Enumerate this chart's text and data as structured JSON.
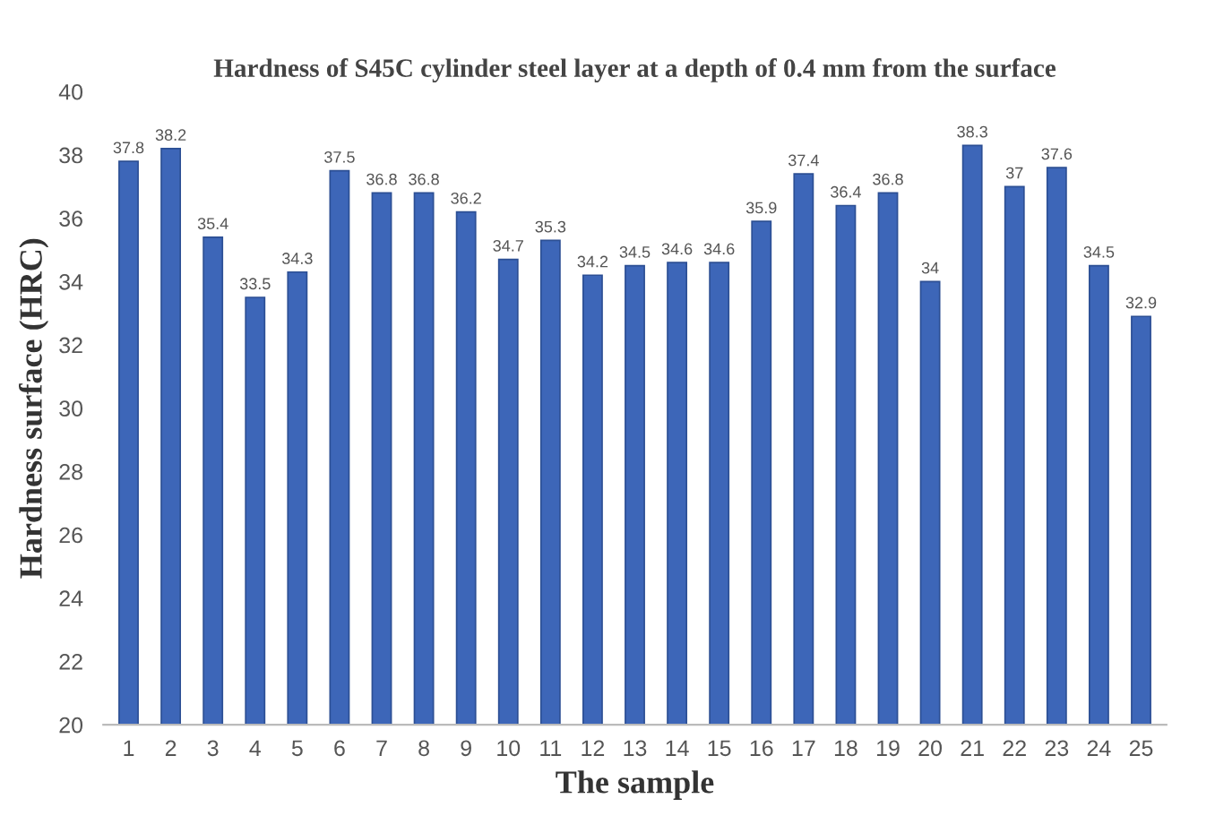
{
  "chart_data": {
    "type": "bar",
    "title": "Hardness of S45C cylinder steel layer at a depth of 0.4 mm from the surface",
    "xlabel": "The sample",
    "ylabel": "Hardness surface (HRC)",
    "categories": [
      "1",
      "2",
      "3",
      "4",
      "5",
      "6",
      "7",
      "8",
      "9",
      "10",
      "11",
      "12",
      "13",
      "14",
      "15",
      "16",
      "17",
      "18",
      "19",
      "20",
      "21",
      "22",
      "23",
      "24",
      "25"
    ],
    "values": [
      37.8,
      38.2,
      35.4,
      33.5,
      34.3,
      37.5,
      36.8,
      36.8,
      36.2,
      34.7,
      35.3,
      34.2,
      34.5,
      34.6,
      34.6,
      35.9,
      37.4,
      36.4,
      36.8,
      34,
      38.3,
      37,
      37.6,
      34.5,
      32.9
    ],
    "color": "#3d66b8",
    "ylim": [
      20,
      40
    ],
    "yticks": [
      20,
      22,
      24,
      26,
      28,
      30,
      32,
      34,
      36,
      38,
      40
    ],
    "data_labels": true,
    "grid": false,
    "legend": false
  }
}
